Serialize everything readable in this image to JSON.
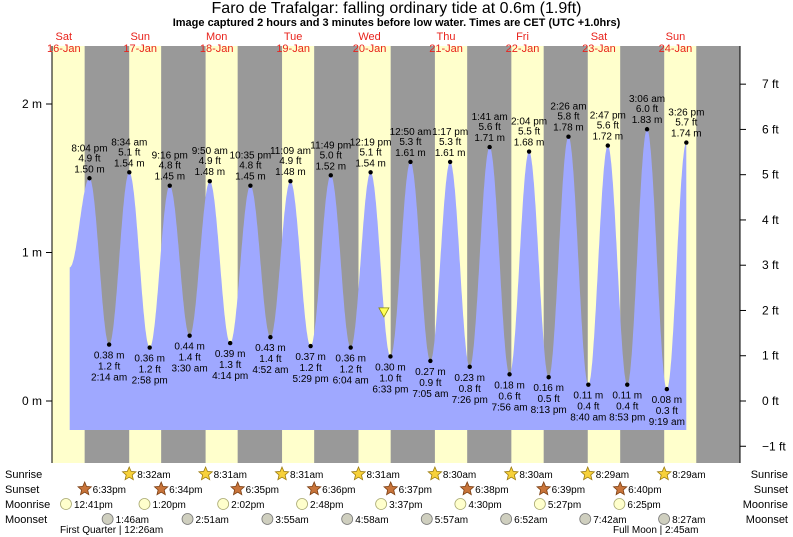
{
  "title": "Faro de Trafalgar: falling  ordinary tide at 0.6m (1.9ft)",
  "subtitle": "Image captured 2 hours and 3 minutes before low water. Times are CET (UTC +1.0hrs)",
  "colors": {
    "day": "#ffffcc",
    "night": "#999999",
    "tide": "#9fa8ff",
    "day_label": "#e8231c",
    "plot_bg_right": "#ffffff"
  },
  "chart_data": {
    "type": "area",
    "title": "Faro de Trafalgar: falling  ordinary tide at 0.6m (1.9ft)",
    "subtitle": "Image captured 2 hours and 3 minutes before low water. Times are CET (UTC +1.0hrs)",
    "x_unit": "day/time (CET)",
    "y_left": {
      "label": "m",
      "ticks": [
        "0 m",
        "1 m",
        "2 m"
      ],
      "values": [
        0,
        1,
        2
      ]
    },
    "y_right": {
      "label": "ft",
      "ticks": [
        "−1 ft",
        "0 ft",
        "1 ft",
        "2 ft",
        "3 ft",
        "4 ft",
        "5 ft",
        "6 ft",
        "7 ft"
      ],
      "values": [
        -1,
        0,
        1,
        2,
        3,
        4,
        5,
        6,
        7
      ]
    },
    "ylim_m": [
      -0.34,
      2.33
    ],
    "day_labels": [
      {
        "day": "Sat",
        "date": "16-Jan"
      },
      {
        "day": "Sun",
        "date": "17-Jan"
      },
      {
        "day": "Mon",
        "date": "18-Jan"
      },
      {
        "day": "Tue",
        "date": "19-Jan"
      },
      {
        "day": "Wed",
        "date": "20-Jan"
      },
      {
        "day": "Thu",
        "date": "21-Jan"
      },
      {
        "day": "Fri",
        "date": "22-Jan"
      },
      {
        "day": "Sat",
        "date": "23-Jan"
      },
      {
        "day": "Sun",
        "date": "24-Jan"
      }
    ],
    "tides": [
      {
        "type": "high",
        "day": 16,
        "time": "8:04 pm",
        "ft": "4.9 ft",
        "m": "1.50 m",
        "value": 1.5
      },
      {
        "type": "low",
        "day": 17,
        "time": "2:14 am",
        "ft": "1.2 ft",
        "m": "0.38 m",
        "value": 0.38
      },
      {
        "type": "high",
        "day": 17,
        "time": "8:34 am",
        "ft": "5.1 ft",
        "m": "1.54 m",
        "value": 1.54
      },
      {
        "type": "low",
        "day": 17,
        "time": "2:58 pm",
        "ft": "1.2 ft",
        "m": "0.36 m",
        "value": 0.36
      },
      {
        "type": "high",
        "day": 17,
        "time": "9:16 pm",
        "ft": "4.8 ft",
        "m": "1.45 m",
        "value": 1.45
      },
      {
        "type": "low",
        "day": 18,
        "time": "3:30 am",
        "ft": "1.4 ft",
        "m": "0.44 m",
        "value": 0.44
      },
      {
        "type": "high",
        "day": 18,
        "time": "9:50 am",
        "ft": "4.9 ft",
        "m": "1.48 m",
        "value": 1.48
      },
      {
        "type": "low",
        "day": 18,
        "time": "4:14 pm",
        "ft": "1.3 ft",
        "m": "0.39 m",
        "value": 0.39
      },
      {
        "type": "high",
        "day": 18,
        "time": "10:35 pm",
        "ft": "4.8 ft",
        "m": "1.45 m",
        "value": 1.45
      },
      {
        "type": "low",
        "day": 19,
        "time": "4:52 am",
        "ft": "1.4 ft",
        "m": "0.43 m",
        "value": 0.43
      },
      {
        "type": "high",
        "day": 19,
        "time": "11:09 am",
        "ft": "4.9 ft",
        "m": "1.48 m",
        "value": 1.48
      },
      {
        "type": "low",
        "day": 19,
        "time": "5:29 pm",
        "ft": "1.2 ft",
        "m": "0.37 m",
        "value": 0.37
      },
      {
        "type": "high",
        "day": 19,
        "time": "11:49 pm",
        "ft": "5.0 ft",
        "m": "1.52 m",
        "value": 1.52
      },
      {
        "type": "low",
        "day": 20,
        "time": "6:04 am",
        "ft": "1.2 ft",
        "m": "0.36 m",
        "value": 0.36
      },
      {
        "type": "high",
        "day": 20,
        "time": "12:19 pm",
        "ft": "5.1 ft",
        "m": "1.54 m",
        "value": 1.54
      },
      {
        "type": "low",
        "day": 20,
        "time": "6:33 pm",
        "ft": "1.0 ft",
        "m": "0.30 m",
        "value": 0.3
      },
      {
        "type": "high",
        "day": 21,
        "time": "12:50 am",
        "ft": "5.3 ft",
        "m": "1.61 m",
        "value": 1.61
      },
      {
        "type": "low",
        "day": 21,
        "time": "7:05 am",
        "ft": "0.9 ft",
        "m": "0.27 m",
        "value": 0.27
      },
      {
        "type": "high",
        "day": 21,
        "time": "1:17 pm",
        "ft": "5.3 ft",
        "m": "1.61 m",
        "value": 1.61
      },
      {
        "type": "low",
        "day": 21,
        "time": "7:26 pm",
        "ft": "0.8 ft",
        "m": "0.23 m",
        "value": 0.23
      },
      {
        "type": "high",
        "day": 22,
        "time": "1:41 am",
        "ft": "5.6 ft",
        "m": "1.71 m",
        "value": 1.71
      },
      {
        "type": "low",
        "day": 22,
        "time": "7:56 am",
        "ft": "0.6 ft",
        "m": "0.18 m",
        "value": 0.18
      },
      {
        "type": "high",
        "day": 22,
        "time": "2:04 pm",
        "ft": "5.5 ft",
        "m": "1.68 m",
        "value": 1.68
      },
      {
        "type": "low",
        "day": 22,
        "time": "8:13 pm",
        "ft": "0.5 ft",
        "m": "0.16 m",
        "value": 0.16
      },
      {
        "type": "high",
        "day": 23,
        "time": "2:26 am",
        "ft": "5.8 ft",
        "m": "1.78 m",
        "value": 1.78
      },
      {
        "type": "low",
        "day": 23,
        "time": "8:40 am",
        "ft": "0.4 ft",
        "m": "0.11 m",
        "value": 0.11
      },
      {
        "type": "high",
        "day": 23,
        "time": "2:47 pm",
        "ft": "5.6 ft",
        "m": "1.72 m",
        "value": 1.72
      },
      {
        "type": "low",
        "day": 23,
        "time": "8:53 pm",
        "ft": "0.4 ft",
        "m": "0.11 m",
        "value": 0.11
      },
      {
        "type": "high",
        "day": 24,
        "time": "3:06 am",
        "ft": "6.0 ft",
        "m": "1.83 m",
        "value": 1.83
      },
      {
        "type": "low",
        "day": 24,
        "time": "9:19 am",
        "ft": "0.3 ft",
        "m": "0.08 m",
        "value": 0.08
      },
      {
        "type": "high",
        "day": 24,
        "time": "3:26 pm",
        "ft": "5.7 ft",
        "m": "1.74 m",
        "value": 1.74
      }
    ],
    "current": {
      "level_m": 0.6,
      "level_ft": 1.9,
      "state": "falling",
      "time_to_low": "2 hours and 3 minutes"
    }
  },
  "rows": {
    "labels": [
      "Sunrise",
      "Sunset",
      "Moonrise",
      "Moonset"
    ],
    "sunrise": [
      {
        "day": 17,
        "time": "8:32am"
      },
      {
        "day": 18,
        "time": "8:31am"
      },
      {
        "day": 19,
        "time": "8:31am"
      },
      {
        "day": 20,
        "time": "8:31am"
      },
      {
        "day": 21,
        "time": "8:30am"
      },
      {
        "day": 22,
        "time": "8:30am"
      },
      {
        "day": 23,
        "time": "8:29am"
      },
      {
        "day": 24,
        "time": "8:29am"
      }
    ],
    "sunset": [
      {
        "day": 16,
        "time": "6:33pm"
      },
      {
        "day": 17,
        "time": "6:34pm"
      },
      {
        "day": 18,
        "time": "6:35pm"
      },
      {
        "day": 19,
        "time": "6:36pm"
      },
      {
        "day": 20,
        "time": "6:37pm"
      },
      {
        "day": 21,
        "time": "6:38pm"
      },
      {
        "day": 22,
        "time": "6:39pm"
      },
      {
        "day": 23,
        "time": "6:40pm"
      }
    ],
    "moonrise": [
      {
        "day": 16,
        "time": "12:41pm"
      },
      {
        "day": 17,
        "time": "1:20pm"
      },
      {
        "day": 18,
        "time": "2:02pm"
      },
      {
        "day": 19,
        "time": "2:48pm"
      },
      {
        "day": 20,
        "time": "3:37pm"
      },
      {
        "day": 21,
        "time": "4:30pm"
      },
      {
        "day": 22,
        "time": "5:27pm"
      },
      {
        "day": 23,
        "time": "6:25pm"
      }
    ],
    "moonset": [
      {
        "day": 17,
        "time": "1:46am"
      },
      {
        "day": 18,
        "time": "2:51am"
      },
      {
        "day": 19,
        "time": "3:55am"
      },
      {
        "day": 20,
        "time": "4:58am"
      },
      {
        "day": 21,
        "time": "5:57am"
      },
      {
        "day": 22,
        "time": "6:52am"
      },
      {
        "day": 23,
        "time": "7:42am"
      },
      {
        "day": 24,
        "time": "8:27am"
      }
    ],
    "moon_phases": [
      {
        "text": "First Quarter | 12:26am"
      },
      {
        "text": "Full Moon | 2:45am"
      }
    ]
  }
}
